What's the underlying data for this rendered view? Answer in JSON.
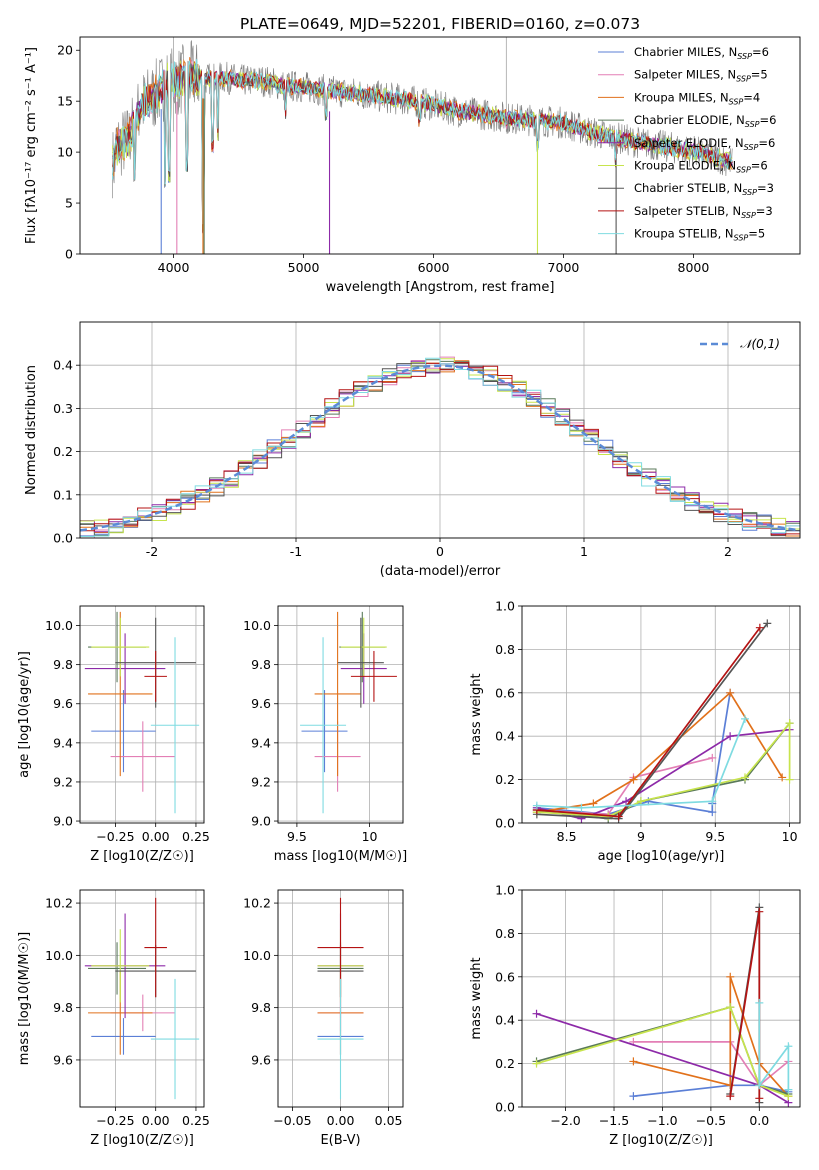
{
  "figure_title": "PLATE=0649, MJD=52201, FIBERID=0160, z=0.073",
  "colors": {
    "Chabrier MILES": "#5b7fd6",
    "Salpeter MILES": "#e37fb5",
    "Kroupa MILES": "#e1711b",
    "Chabrier ELODIE": "#5a7a5a",
    "Salpeter ELODIE": "#8d2aa8",
    "Kroupa ELODIE": "#c7e44d",
    "Chabrier STELIB": "#555555",
    "Salpeter STELIB": "#b41313",
    "Kroupa STELIB": "#7fdbe1",
    "normal": "#5b8bd6"
  },
  "chart_data": [
    {
      "type": "line",
      "panel": "spectrum",
      "title": "PLATE=0649, MJD=52201, FIBERID=0160, z=0.073",
      "xlabel": "wavelength [Angstrom, rest frame]",
      "ylabel": "Flux [fλ10⁻¹⁷ erg cm⁻² s⁻¹ A⁻¹]",
      "xlim": [
        3280,
        8820
      ],
      "ylim": [
        0,
        21.3
      ],
      "xticks": [
        4000,
        5000,
        6000,
        7000,
        8000
      ],
      "yticks": [
        0,
        5,
        10,
        15,
        20
      ],
      "legend_position": "upper right",
      "legend": [
        "Chabrier MILES, N",
        "Salpeter MILES, N",
        "Kroupa MILES, N",
        "Chabrier ELODIE, N",
        "Salpeter ELODIE, N",
        "Kroupa ELODIE, N",
        "Chabrier STELIB, N",
        "Salpeter STELIB, N",
        "Kroupa STELIB, N"
      ],
      "legend_nssp": [
        "=6",
        "=5",
        "=4",
        "=6",
        "=6",
        "=6",
        "=3",
        "=3",
        "=5"
      ],
      "legend_sub": [
        "SSP",
        "SSP",
        "SSP",
        "SSP",
        "SSP",
        "SSP",
        "SSP",
        "SSP",
        "SSP"
      ],
      "continuum": [
        [
          3550,
          10.5
        ],
        [
          3650,
          11.2
        ],
        [
          3750,
          14.5
        ],
        [
          3850,
          15.5
        ],
        [
          3950,
          16.8
        ],
        [
          4050,
          17.0
        ],
        [
          4150,
          17.5
        ],
        [
          4250,
          17.2
        ],
        [
          4400,
          17.3
        ],
        [
          4550,
          17.0
        ],
        [
          4700,
          17.0
        ],
        [
          4850,
          16.5
        ],
        [
          5000,
          16.4
        ],
        [
          5200,
          16.0
        ],
        [
          5400,
          15.8
        ],
        [
          5600,
          15.4
        ],
        [
          5800,
          15.1
        ],
        [
          6000,
          14.6
        ],
        [
          6200,
          14.0
        ],
        [
          6400,
          13.7
        ],
        [
          6600,
          13.3
        ],
        [
          6800,
          13.1
        ],
        [
          7000,
          12.9
        ],
        [
          7200,
          12.0
        ],
        [
          7400,
          11.4
        ],
        [
          7600,
          10.9
        ],
        [
          7800,
          10.5
        ],
        [
          8000,
          10.1
        ],
        [
          8200,
          9.4
        ],
        [
          8300,
          9.0
        ]
      ],
      "dips": [
        [
          3700,
          7
        ],
        [
          3934,
          6.5
        ],
        [
          3968,
          7
        ],
        [
          4101,
          8
        ],
        [
          4226,
          2
        ],
        [
          4300,
          10
        ],
        [
          4340,
          11
        ],
        [
          4861,
          13
        ],
        [
          5175,
          13
        ],
        [
          5890,
          12.5
        ],
        [
          6563,
          12
        ],
        [
          6800,
          10
        ],
        [
          7400,
          8.5
        ]
      ],
      "drops": [
        [
          3905,
          0
        ],
        [
          4025,
          0
        ],
        [
          4226,
          0
        ],
        [
          4235,
          0
        ],
        [
          5200,
          0
        ],
        [
          6800,
          0
        ],
        [
          7405,
          0
        ]
      ]
    },
    {
      "type": "line",
      "panel": "residual-distribution",
      "xlabel": "(data-model)/error",
      "ylabel": "Normed distribution",
      "xlim": [
        -2.5,
        2.5
      ],
      "ylim": [
        0,
        0.5
      ],
      "xticks": [
        -2,
        -1,
        0,
        1,
        2
      ],
      "yticks": [
        0.0,
        0.1,
        0.2,
        0.3,
        0.4
      ],
      "legend_position": "upper right",
      "reference_label": "𝒩(0,1)",
      "grid": true
    },
    {
      "type": "scatter",
      "panel": "age-vs-Z",
      "xlabel": "Z [log10(Z/Z☉)]",
      "ylabel": "age  [log10(age/yr)]",
      "xlim": [
        -0.47,
        0.3
      ],
      "ylim": [
        8.99,
        10.1
      ],
      "xticks": [
        -0.25,
        0.0,
        0.25
      ],
      "xtick_labels": [
        "−0.25",
        "0.00",
        "0.25"
      ],
      "yticks": [
        9.0,
        9.2,
        9.4,
        9.6,
        9.8,
        10.0
      ],
      "grid": true,
      "points": [
        {
          "model": "Chabrier MILES",
          "x": -0.2,
          "y": 9.46,
          "xerr": 0.2,
          "yerr": 0.21
        },
        {
          "model": "Salpeter MILES",
          "x": -0.08,
          "y": 9.33,
          "xerr": 0.2,
          "yerr": 0.18
        },
        {
          "model": "Kroupa MILES",
          "x": -0.22,
          "y": 9.65,
          "xerr": 0.2,
          "yerr": 0.42
        },
        {
          "model": "Chabrier ELODIE",
          "x": -0.24,
          "y": 9.89,
          "xerr": 0.18,
          "yerr": 0.18
        },
        {
          "model": "Salpeter ELODIE",
          "x": -0.19,
          "y": 9.78,
          "xerr": 0.25,
          "yerr": 0.18
        },
        {
          "model": "Kroupa ELODIE",
          "x": -0.22,
          "y": 9.89,
          "xerr": 0.18,
          "yerr": 0.15
        },
        {
          "model": "Chabrier STELIB",
          "x": 0.0,
          "y": 9.81,
          "xerr": 0.25,
          "yerr": 0.23
        },
        {
          "model": "Salpeter STELIB",
          "x": 0.0,
          "y": 9.74,
          "xerr": 0.07,
          "yerr": 0.13
        },
        {
          "model": "Kroupa STELIB",
          "x": 0.12,
          "y": 9.49,
          "xerr": 0.15,
          "yerr": 0.45
        }
      ]
    },
    {
      "type": "scatter",
      "panel": "age-vs-mass",
      "xlabel": "mass [log10(M/M☉)]",
      "ylabel": "",
      "xlim": [
        9.37,
        10.23
      ],
      "ylim": [
        8.99,
        10.1
      ],
      "xticks": [
        9.5,
        10.0
      ],
      "yticks": [
        9.0,
        9.2,
        9.4,
        9.6,
        9.8,
        10.0
      ],
      "grid": true,
      "points": [
        {
          "model": "Chabrier MILES",
          "x": 9.69,
          "y": 9.46,
          "yerr": 0.21
        },
        {
          "model": "Salpeter MILES",
          "x": 9.78,
          "y": 9.33,
          "yerr": 0.18
        },
        {
          "model": "Kroupa MILES",
          "x": 9.78,
          "y": 9.65,
          "yerr": 0.42
        },
        {
          "model": "Chabrier ELODIE",
          "x": 9.95,
          "y": 9.89,
          "yerr": 0.18
        },
        {
          "model": "Salpeter ELODIE",
          "x": 9.96,
          "y": 9.78,
          "yerr": 0.18
        },
        {
          "model": "Kroupa ELODIE",
          "x": 9.96,
          "y": 9.89,
          "yerr": 0.15
        },
        {
          "model": "Chabrier STELIB",
          "x": 9.94,
          "y": 9.81,
          "yerr": 0.23
        },
        {
          "model": "Salpeter STELIB",
          "x": 10.03,
          "y": 9.74,
          "yerr": 0.13
        },
        {
          "model": "Kroupa STELIB",
          "x": 9.68,
          "y": 9.49,
          "yerr": 0.45
        }
      ]
    },
    {
      "type": "line",
      "panel": "mass-weight-vs-age",
      "xlabel": "age  [log10(age/yr)]",
      "ylabel": "mass weight",
      "xlim": [
        8.2,
        10.07
      ],
      "ylim": [
        0,
        1.0
      ],
      "xticks": [
        8.5,
        9.0,
        9.5,
        10.0
      ],
      "yticks": [
        0.0,
        0.2,
        0.4,
        0.6,
        0.8,
        1.0
      ],
      "grid": true,
      "series": [
        {
          "model": "Chabrier MILES",
          "points": [
            [
              8.3,
              0.07
            ],
            [
              8.78,
              0.04
            ],
            [
              9.05,
              0.1
            ],
            [
              9.48,
              0.05
            ],
            [
              9.48,
              0.09
            ],
            [
              9.6,
              0.6
            ]
          ]
        },
        {
          "model": "Salpeter MILES",
          "points": [
            [
              8.3,
              0.06
            ],
            [
              8.78,
              0.04
            ],
            [
              8.95,
              0.21
            ],
            [
              9.48,
              0.3
            ]
          ]
        },
        {
          "model": "Kroupa MILES",
          "points": [
            [
              8.3,
              0.05
            ],
            [
              8.68,
              0.09
            ],
            [
              8.95,
              0.2
            ],
            [
              9.6,
              0.6
            ],
            [
              9.95,
              0.21
            ]
          ]
        },
        {
          "model": "Chabrier ELODIE",
          "points": [
            [
              8.3,
              0.06
            ],
            [
              8.78,
              0.02
            ],
            [
              9.0,
              0.1
            ],
            [
              9.7,
              0.2
            ],
            [
              10.0,
              0.46
            ]
          ]
        },
        {
          "model": "Salpeter ELODIE",
          "points": [
            [
              8.3,
              0.07
            ],
            [
              8.6,
              0.02
            ],
            [
              8.9,
              0.1
            ],
            [
              9.6,
              0.4
            ],
            [
              10.0,
              0.43
            ]
          ]
        },
        {
          "model": "Kroupa ELODIE",
          "points": [
            [
              8.3,
              0.05
            ],
            [
              8.78,
              0.03
            ],
            [
              9.0,
              0.1
            ],
            [
              9.7,
              0.21
            ],
            [
              10.0,
              0.46
            ],
            [
              10.0,
              0.2
            ]
          ]
        },
        {
          "model": "Chabrier STELIB",
          "points": [
            [
              8.3,
              0.04
            ],
            [
              8.85,
              0.02
            ],
            [
              9.85,
              0.92
            ]
          ]
        },
        {
          "model": "Salpeter STELIB",
          "points": [
            [
              8.3,
              0.06
            ],
            [
              8.85,
              0.03
            ],
            [
              9.8,
              0.9
            ]
          ]
        },
        {
          "model": "Kroupa STELIB",
          "points": [
            [
              8.3,
              0.08
            ],
            [
              8.6,
              0.07
            ],
            [
              9.48,
              0.1
            ],
            [
              9.7,
              0.48
            ]
          ]
        }
      ]
    },
    {
      "type": "scatter",
      "panel": "mass-vs-Z",
      "xlabel": "Z [log10(Z/Z☉)]",
      "ylabel": "mass [log10(M/M☉)]",
      "xlim": [
        -0.47,
        0.3
      ],
      "ylim": [
        9.42,
        10.25
      ],
      "xticks": [
        -0.25,
        0.0,
        0.25
      ],
      "xtick_labels": [
        "−0.25",
        "0.00",
        "0.25"
      ],
      "yticks": [
        9.6,
        9.8,
        10.0,
        10.2
      ],
      "grid": true,
      "points": [
        {
          "model": "Chabrier MILES",
          "x": -0.2,
          "y": 9.69,
          "xerr": 0.2,
          "yerr": 0.07
        },
        {
          "model": "Salpeter MILES",
          "x": -0.08,
          "y": 9.78,
          "xerr": 0.2,
          "yerr": 0.07
        },
        {
          "model": "Kroupa MILES",
          "x": -0.22,
          "y": 9.78,
          "xerr": 0.2,
          "yerr": 0.16
        },
        {
          "model": "Chabrier ELODIE",
          "x": -0.24,
          "y": 9.95,
          "xerr": 0.18,
          "yerr": 0.1
        },
        {
          "model": "Salpeter ELODIE",
          "x": -0.19,
          "y": 9.96,
          "xerr": 0.25,
          "yerr": 0.2
        },
        {
          "model": "Kroupa ELODIE",
          "x": -0.22,
          "y": 9.96,
          "xerr": 0.18,
          "yerr": 0.14
        },
        {
          "model": "Chabrier STELIB",
          "x": 0.0,
          "y": 9.94,
          "xerr": 0.25,
          "yerr": 0.1
        },
        {
          "model": "Salpeter STELIB",
          "x": 0.0,
          "y": 10.03,
          "xerr": 0.07,
          "yerr": 0.19
        },
        {
          "model": "Kroupa STELIB",
          "x": 0.12,
          "y": 9.68,
          "xerr": 0.15,
          "yerr": 0.23
        }
      ]
    },
    {
      "type": "scatter",
      "panel": "mass-vs-EBV",
      "xlabel": "E(B-V)",
      "ylabel": "",
      "xlim": [
        -0.065,
        0.065
      ],
      "ylim": [
        9.42,
        10.25
      ],
      "xticks": [
        -0.05,
        0.0,
        0.05
      ],
      "xtick_labels": [
        "−0.05",
        "0.00",
        "0.05"
      ],
      "yticks": [
        9.6,
        9.8,
        10.0,
        10.2
      ],
      "grid": true,
      "points": [
        {
          "model": "Chabrier MILES",
          "x": 0.0,
          "y": 9.69,
          "yerr": 0.07
        },
        {
          "model": "Salpeter MILES",
          "x": 0.0,
          "y": 9.78,
          "yerr": 0.07
        },
        {
          "model": "Kroupa MILES",
          "x": 0.0,
          "y": 9.78,
          "yerr": 0.16
        },
        {
          "model": "Chabrier ELODIE",
          "x": 0.0,
          "y": 9.95,
          "yerr": 0.1
        },
        {
          "model": "Salpeter ELODIE",
          "x": 0.0,
          "y": 9.96,
          "yerr": 0.2
        },
        {
          "model": "Kroupa ELODIE",
          "x": 0.0,
          "y": 9.96,
          "yerr": 0.14
        },
        {
          "model": "Chabrier STELIB",
          "x": 0.0,
          "y": 9.94,
          "yerr": 0.1
        },
        {
          "model": "Salpeter STELIB",
          "x": 0.0,
          "y": 10.03,
          "yerr": 0.19
        },
        {
          "model": "Kroupa STELIB",
          "x": 0.0,
          "y": 9.68,
          "yerr": 0.23
        }
      ]
    },
    {
      "type": "line",
      "panel": "mass-weight-vs-Z",
      "xlabel": "Z [log10(Z/Z☉)]",
      "ylabel": "mass weight",
      "xlim": [
        -2.45,
        0.42
      ],
      "ylim": [
        0,
        1.0
      ],
      "xticks": [
        -2.0,
        -1.5,
        -1.0,
        -0.5,
        0.0
      ],
      "xtick_labels": [
        "−2.0",
        "−1.5",
        "−1.0",
        "−0.5",
        "0.0"
      ],
      "yticks": [
        0.0,
        0.2,
        0.4,
        0.6,
        0.8,
        1.0
      ],
      "grid": true,
      "series": [
        {
          "model": "Chabrier MILES",
          "points": [
            [
              -1.3,
              0.05
            ],
            [
              -0.3,
              0.1
            ],
            [
              0.0,
              0.1
            ],
            [
              0.3,
              0.07
            ]
          ]
        },
        {
          "model": "Salpeter MILES",
          "points": [
            [
              -1.3,
              0.3
            ],
            [
              -0.3,
              0.3
            ],
            [
              0.0,
              0.1
            ],
            [
              0.3,
              0.21
            ]
          ]
        },
        {
          "model": "Kroupa MILES",
          "points": [
            [
              -1.3,
              0.21
            ],
            [
              -0.3,
              0.1
            ],
            [
              -0.3,
              0.6
            ],
            [
              0.0,
              0.2
            ],
            [
              0.3,
              0.05
            ]
          ]
        },
        {
          "model": "Chabrier ELODIE",
          "points": [
            [
              -2.3,
              0.21
            ],
            [
              -0.3,
              0.46
            ],
            [
              0.0,
              0.1
            ],
            [
              0.3,
              0.06
            ]
          ]
        },
        {
          "model": "Salpeter ELODIE",
          "points": [
            [
              -2.3,
              0.43
            ],
            [
              0.0,
              0.1
            ],
            [
              0.3,
              0.02
            ]
          ]
        },
        {
          "model": "Kroupa ELODIE",
          "points": [
            [
              -2.3,
              0.2
            ],
            [
              -0.3,
              0.46
            ],
            [
              0.0,
              0.1
            ],
            [
              0.3,
              0.05
            ]
          ]
        },
        {
          "model": "Chabrier STELIB",
          "points": [
            [
              -0.3,
              0.06
            ],
            [
              0.0,
              0.92
            ],
            [
              0.0,
              0.02
            ]
          ]
        },
        {
          "model": "Salpeter STELIB",
          "points": [
            [
              -0.3,
              0.05
            ],
            [
              0.0,
              0.9
            ],
            [
              0.0,
              0.04
            ]
          ]
        },
        {
          "model": "Kroupa STELIB",
          "points": [
            [
              0.0,
              0.48
            ],
            [
              0.0,
              0.1
            ],
            [
              0.3,
              0.28
            ],
            [
              0.3,
              0.08
            ]
          ]
        }
      ]
    }
  ]
}
